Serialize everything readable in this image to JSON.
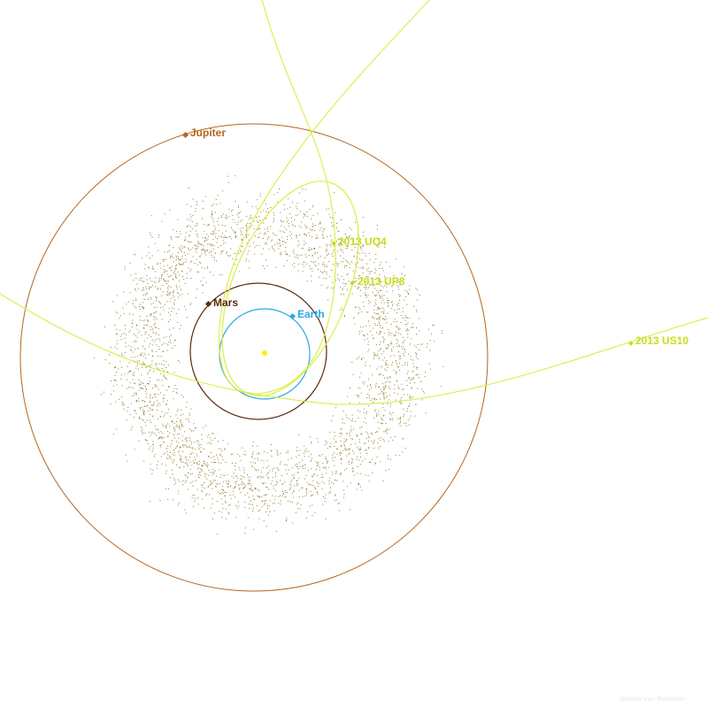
{
  "colors": {
    "background": "#ffffff",
    "sun": "#ffee00",
    "earth": "#2aa8e0",
    "mars": "#5a2a10",
    "jupiter": "#b5651d",
    "asteroid_belt": "#8a7a2a",
    "object_orbits": "#d9ee44",
    "object_labels": "#c8dc1a",
    "credit": "#e6e6e6"
  },
  "bodies": [
    {
      "id": "sun",
      "label": ""
    },
    {
      "id": "earth",
      "label": "Earth"
    },
    {
      "id": "mars",
      "label": "Mars"
    },
    {
      "id": "jupiter",
      "label": "Jupiter"
    }
  ],
  "objects": [
    {
      "id": "uq4",
      "label": "2013 UQ4"
    },
    {
      "id": "up8",
      "label": "2013 UP8"
    },
    {
      "id": "us10",
      "label": "2013 US10"
    }
  ],
  "credit": "Gideon van Buitenen"
}
